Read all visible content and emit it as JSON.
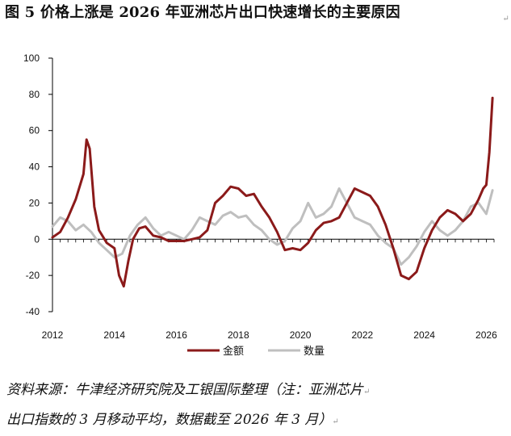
{
  "figure": {
    "title": "图 5 价格上涨是 2026 年亚洲芯片出口快速增长的主要原因",
    "source_lines": [
      "资料来源：牛津经济研究院及工银国际整理（注：亚洲芯片",
      "出口指数的 3 月移动平均，数据截至 2026 年 3 月）"
    ],
    "paragraph_mark": "↵"
  },
  "chart_data": {
    "type": "line",
    "title": "",
    "xlabel": "",
    "ylabel": "",
    "ylim": [
      -40,
      100
    ],
    "yticks": [
      -40,
      -20,
      0,
      20,
      40,
      60,
      80,
      100
    ],
    "xlim": [
      2012.0,
      2026.25
    ],
    "xticks": [
      2012,
      2014,
      2016,
      2018,
      2020,
      2022,
      2024,
      2026
    ],
    "grid": false,
    "legend_position": "bottom-center",
    "series": [
      {
        "name": "金额",
        "color": "#8B1A1A",
        "x": [
          2012.0,
          2012.25,
          2012.5,
          2012.75,
          2013.0,
          2013.1,
          2013.2,
          2013.35,
          2013.5,
          2013.75,
          2014.0,
          2014.15,
          2014.3,
          2014.45,
          2014.6,
          2014.8,
          2015.0,
          2015.25,
          2015.5,
          2015.75,
          2016.0,
          2016.25,
          2016.5,
          2016.75,
          2017.0,
          2017.25,
          2017.5,
          2017.75,
          2018.0,
          2018.25,
          2018.5,
          2018.75,
          2019.0,
          2019.25,
          2019.5,
          2019.75,
          2020.0,
          2020.25,
          2020.5,
          2020.75,
          2021.0,
          2021.25,
          2021.5,
          2021.75,
          2022.0,
          2022.25,
          2022.5,
          2022.75,
          2023.0,
          2023.25,
          2023.5,
          2023.75,
          2024.0,
          2024.25,
          2024.5,
          2024.75,
          2025.0,
          2025.25,
          2025.5,
          2025.75,
          2025.9,
          2026.0,
          2026.1,
          2026.2
        ],
        "y": [
          1,
          4,
          12,
          22,
          36,
          55,
          50,
          18,
          5,
          -2,
          -5,
          -20,
          -26,
          -12,
          0,
          6,
          7,
          2,
          1,
          -1,
          -1,
          -1,
          0,
          1,
          5,
          20,
          24,
          29,
          28,
          24,
          25,
          18,
          12,
          4,
          -6,
          -5,
          -6,
          -2,
          5,
          9,
          10,
          12,
          20,
          28,
          26,
          24,
          18,
          8,
          -5,
          -20,
          -22,
          -18,
          -5,
          5,
          12,
          16,
          14,
          10,
          14,
          22,
          28,
          30,
          48,
          78
        ]
      },
      {
        "name": "数量",
        "color": "#BFBFBF",
        "x": [
          2012.0,
          2012.25,
          2012.5,
          2012.75,
          2013.0,
          2013.25,
          2013.5,
          2013.75,
          2014.0,
          2014.25,
          2014.5,
          2014.75,
          2015.0,
          2015.25,
          2015.5,
          2015.75,
          2016.0,
          2016.25,
          2016.5,
          2016.75,
          2017.0,
          2017.25,
          2017.5,
          2017.75,
          2018.0,
          2018.25,
          2018.5,
          2018.75,
          2019.0,
          2019.25,
          2019.5,
          2019.75,
          2020.0,
          2020.25,
          2020.5,
          2020.75,
          2021.0,
          2021.25,
          2021.5,
          2021.75,
          2022.0,
          2022.25,
          2022.5,
          2022.75,
          2023.0,
          2023.25,
          2023.5,
          2023.75,
          2024.0,
          2024.25,
          2024.5,
          2024.75,
          2025.0,
          2025.25,
          2025.5,
          2025.75,
          2026.0,
          2026.2
        ],
        "y": [
          7,
          12,
          10,
          5,
          8,
          4,
          -2,
          -6,
          -10,
          -8,
          2,
          8,
          12,
          6,
          2,
          4,
          2,
          0,
          5,
          12,
          10,
          8,
          13,
          15,
          12,
          13,
          8,
          5,
          0,
          -3,
          -1,
          6,
          10,
          20,
          12,
          14,
          18,
          28,
          20,
          12,
          10,
          8,
          2,
          -2,
          -5,
          -14,
          -10,
          -4,
          4,
          10,
          5,
          2,
          5,
          10,
          18,
          20,
          14,
          27
        ]
      }
    ]
  }
}
